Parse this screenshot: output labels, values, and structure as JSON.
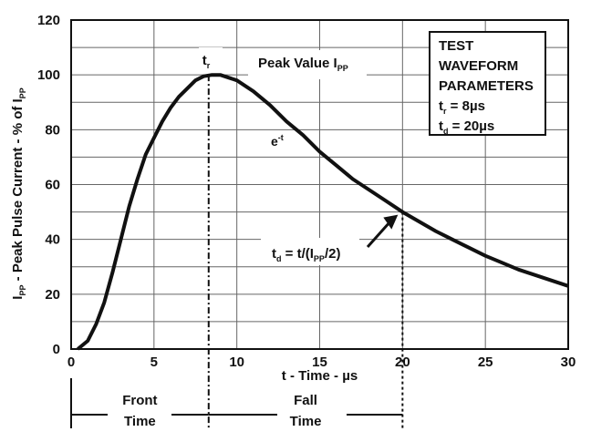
{
  "chart_data": {
    "type": "line",
    "xlabel": "t - Time - µs",
    "ylabel": {
      "main": "I",
      "sub1": "PP",
      "mid": " - Peak Pulse Current - % of I",
      "sub2": "PP"
    },
    "xlim": [
      0,
      30
    ],
    "ylim": [
      0,
      120
    ],
    "x_ticks": [
      0,
      5,
      10,
      15,
      20,
      25,
      30
    ],
    "y_ticks": [
      0,
      20,
      40,
      60,
      80,
      100,
      120
    ],
    "grid": true,
    "series": [
      {
        "x": [
          0.4,
          1,
          1.5,
          2,
          2.5,
          3,
          3.5,
          4,
          4.5,
          5,
          5.5,
          6,
          6.5,
          7,
          7.5,
          8,
          8.5,
          9,
          9.5,
          10,
          11,
          12,
          13,
          14,
          15,
          16,
          17,
          18,
          19,
          20,
          21,
          22,
          23,
          24,
          25,
          26,
          27,
          28,
          29,
          30
        ],
        "y": [
          0,
          3,
          9,
          17,
          28,
          40,
          52,
          62,
          71,
          77,
          83,
          88,
          92,
          95,
          98,
          99.5,
          100,
          100,
          99,
          98,
          94,
          89,
          83,
          78,
          72,
          67,
          62,
          58,
          54,
          50,
          46.5,
          43,
          40,
          37,
          34,
          31.5,
          29,
          27,
          25,
          23
        ]
      }
    ],
    "annotations": {
      "tr_label": {
        "main": "t",
        "sub": "r"
      },
      "peak_label": {
        "main": "Peak Value I",
        "sub": "PP"
      },
      "exp_label": {
        "main": "e",
        "sup": "-t"
      },
      "td_label": {
        "pre": "t",
        "sub1": "d",
        "mid": " = t/(I",
        "sub2": "PP",
        "post": "/2)"
      },
      "tr_x": 8.3,
      "td_x": 20,
      "td_y": 50,
      "front_time_label": [
        "Front",
        "Time"
      ],
      "fall_time_label": [
        "Fall",
        "Time"
      ]
    },
    "params_box": {
      "line1": "TEST",
      "line2": "WAVEFORM",
      "line3": "PARAMETERS",
      "tr": {
        "main": "t",
        "sub": "r",
        "rest": " = 8µs"
      },
      "td": {
        "main": "t",
        "sub": "d",
        "rest": " = 20µs"
      }
    }
  }
}
